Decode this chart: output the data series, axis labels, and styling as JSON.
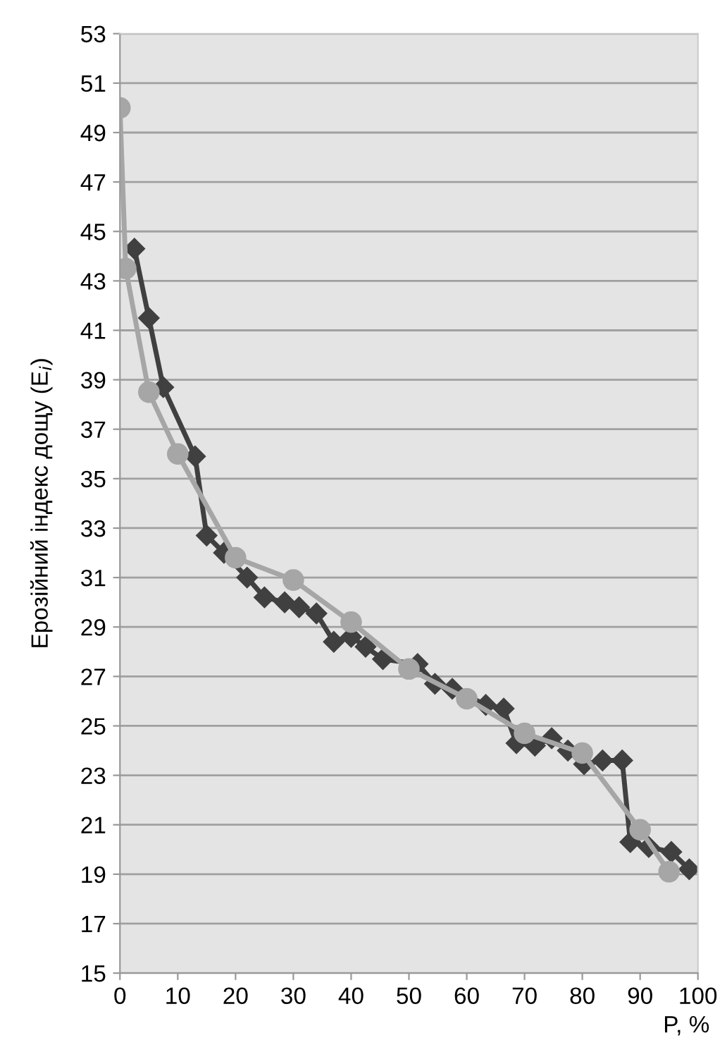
{
  "chart_data": {
    "type": "line",
    "xlabel": "P, %",
    "ylabel": "Ерозійний індекс дощу (E$_{i}$)",
    "xlim": [
      0,
      100
    ],
    "xticks": [
      0,
      10,
      20,
      30,
      40,
      50,
      60,
      70,
      80,
      90,
      100
    ],
    "ylim": [
      15,
      53
    ],
    "yticks": [
      15,
      17,
      19,
      21,
      23,
      25,
      27,
      29,
      31,
      33,
      35,
      37,
      39,
      41,
      43,
      45,
      47,
      49,
      51,
      53
    ],
    "grid": "y",
    "legend": false,
    "series": [
      {
        "color": "#404040",
        "marker": "diamond",
        "x": [
          2.5,
          5,
          7.5,
          13,
          15,
          18,
          22,
          25,
          28.5,
          31,
          34,
          37,
          40,
          42.5,
          45.5,
          51.5,
          54.5,
          57.5,
          63.3,
          66.4,
          68.6,
          71.8,
          74.7,
          77.5,
          80.3,
          83.5,
          86.9,
          88.3,
          91.5,
          95.4,
          98.5
        ],
        "values": [
          44.3,
          41.5,
          38.7,
          35.9,
          32.7,
          32.0,
          31.0,
          30.2,
          30.0,
          29.8,
          29.55,
          28.4,
          28.6,
          28.2,
          27.7,
          27.5,
          26.7,
          26.5,
          25.85,
          25.7,
          24.3,
          24.2,
          24.5,
          24.0,
          23.45,
          23.6,
          23.6,
          20.3,
          20.1,
          19.9,
          19.2
        ]
      },
      {
        "color": "#a6a6a6",
        "marker": "circle",
        "x": [
          0,
          1,
          5,
          10,
          20,
          30,
          40,
          50,
          60,
          70,
          80,
          90,
          95
        ],
        "values": [
          50,
          43.5,
          38.5,
          36,
          31.8,
          30.9,
          29.2,
          27.3,
          26.1,
          24.7,
          23.9,
          20.8,
          19.1
        ]
      }
    ]
  }
}
